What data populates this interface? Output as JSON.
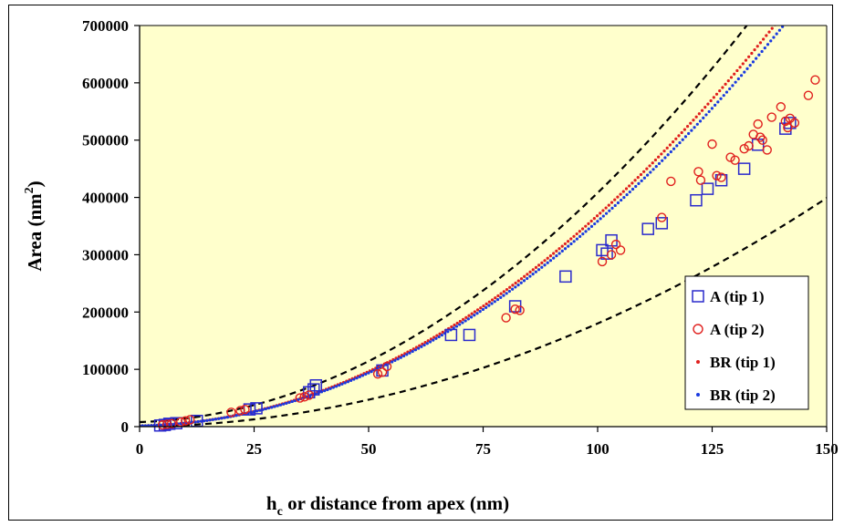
{
  "colors": {
    "plot_bg": "#ffffcc",
    "tip1": "#2a2acc",
    "tip2": "#e0201e",
    "br_tip1": "#e0201e",
    "br_tip2": "#1a3ae0",
    "bound": "#000000"
  },
  "chart_data": {
    "type": "scatter",
    "title": "",
    "xlabel_main": "h",
    "xlabel_sub": "c",
    "xlabel_rest": " or distance from apex (nm)",
    "ylabel_main": "Area (nm",
    "ylabel_sup": "2",
    "ylabel_close": ")",
    "xlim": [
      0,
      150
    ],
    "ylim": [
      0,
      700000
    ],
    "xticks": [
      "0",
      "25",
      "50",
      "75",
      "100",
      "125",
      "150"
    ],
    "yticks": [
      "0",
      "100000",
      "200000",
      "300000",
      "400000",
      "500000",
      "600000",
      "700000"
    ],
    "legend_position": "lower-right",
    "series": [
      {
        "name": "A (tip 1)",
        "marker": "square",
        "x": [
          4.5,
          5.5,
          6.5,
          8,
          12.5,
          24,
          25.5,
          37,
          38,
          38.5,
          53,
          68,
          72,
          82,
          93,
          101,
          102,
          103,
          111,
          114,
          121.5,
          124,
          127,
          132,
          135,
          141,
          142
        ],
        "y": [
          2000,
          3000,
          5000,
          6000,
          10000,
          30000,
          32000,
          60000,
          65000,
          72000,
          98000,
          160000,
          160000,
          210000,
          262000,
          308000,
          302000,
          325000,
          345000,
          355000,
          395000,
          415000,
          430000,
          450000,
          492000,
          520000,
          530000
        ]
      },
      {
        "name": "A (tip 2)",
        "marker": "circle",
        "x": [
          5,
          6,
          7,
          9,
          10,
          11,
          20,
          22,
          23,
          35,
          36,
          37,
          52,
          53,
          54,
          80,
          82,
          83,
          101,
          103,
          104,
          105,
          114,
          116,
          122,
          122.5,
          125,
          126,
          127,
          129,
          130,
          132,
          133,
          134,
          135,
          135.5,
          136,
          137,
          138,
          140,
          141,
          141.5,
          142,
          143,
          146,
          147.5
        ],
        "y": [
          3000,
          4000,
          5000,
          8000,
          10000,
          12000,
          25000,
          28000,
          30000,
          50000,
          52000,
          55000,
          92000,
          95000,
          105000,
          190000,
          205000,
          203000,
          288000,
          300000,
          318000,
          308000,
          365000,
          428000,
          445000,
          430000,
          493000,
          438000,
          435000,
          470000,
          465000,
          485000,
          490000,
          510000,
          528000,
          505000,
          500000,
          483000,
          540000,
          558000,
          533000,
          522000,
          538000,
          530000,
          578000,
          605000
        ]
      },
      {
        "name": "BR (tip 1)",
        "marker": "dot",
        "coef": {
          "a": 35.5,
          "b": 120,
          "c": 1500
        },
        "x_range": [
          0,
          140
        ]
      },
      {
        "name": "BR (tip 2)",
        "marker": "dot",
        "coef": {
          "a": 34.5,
          "b": 120,
          "c": 1500
        },
        "x_range": [
          0,
          141
        ]
      }
    ],
    "bounds": [
      {
        "name": "upper",
        "coef": {
          "a": 37.5,
          "b": 250,
          "c": 8000
        },
        "x_range": [
          0,
          140
        ]
      },
      {
        "name": "lower",
        "coef": {
          "a": 17.2,
          "b": 80,
          "c": 0
        },
        "x_range": [
          0,
          150
        ]
      }
    ]
  }
}
